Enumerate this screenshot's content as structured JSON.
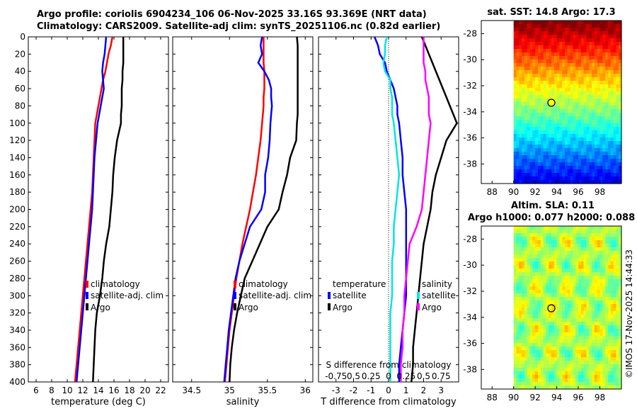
{
  "header": {
    "line1": "Argo profile: coriolis 6904234_106 06-Nov-2025 33.16S 93.369E (NRT data)",
    "line2": "Climatology: CARS2009. Satellite-adj clim: synTS_20251106.nc (0.82d earlier)"
  },
  "colors": {
    "climatology": "#ff0000",
    "satellite": "#0000ff",
    "argo": "#000000",
    "sat_salinity": "#00e5e5",
    "argo_salinity": "#ff00ff"
  },
  "chart_data": [
    {
      "id": "temperature",
      "type": "line",
      "xlabel": "temperature (deg C)",
      "ylabel": "",
      "xlim": [
        5,
        23
      ],
      "ylim": [
        400,
        0
      ],
      "xticks": [
        6,
        8,
        10,
        12,
        14,
        16,
        18,
        20,
        22
      ],
      "yticks": [
        0,
        20,
        40,
        60,
        80,
        100,
        120,
        140,
        160,
        180,
        200,
        220,
        240,
        260,
        280,
        300,
        320,
        340,
        360,
        380,
        400
      ],
      "legend": [
        "climatology",
        "satellite-adj. clim",
        "Argo"
      ],
      "series": [
        {
          "name": "climatology",
          "color": "#ff0000",
          "x": [
            15.8,
            15.6,
            15.3,
            15.1,
            14.9,
            14.6,
            14.4,
            14.2,
            14.0,
            13.8,
            13.6,
            13.5,
            13.4,
            13.3,
            13.2,
            13.0,
            12.8,
            12.6,
            12.4,
            12.2,
            12.0,
            11.8,
            11.6,
            11.4,
            11.2,
            11.0
          ],
          "y": [
            0,
            10,
            20,
            30,
            40,
            50,
            60,
            70,
            80,
            90,
            100,
            120,
            140,
            160,
            180,
            200,
            220,
            240,
            260,
            280,
            300,
            320,
            340,
            360,
            380,
            400
          ]
        },
        {
          "name": "satellite-adj. clim",
          "color": "#0000ff",
          "x": [
            15.0,
            14.9,
            14.8,
            14.6,
            14.5,
            14.6,
            14.7,
            14.5,
            14.3,
            14.1,
            13.9,
            13.7,
            13.5,
            13.4,
            13.3,
            13.2,
            13.0,
            12.8,
            12.6,
            12.4,
            12.2,
            12.0,
            11.8,
            11.6,
            11.4,
            11.2
          ],
          "y": [
            0,
            10,
            20,
            30,
            40,
            50,
            60,
            70,
            80,
            90,
            100,
            120,
            140,
            160,
            180,
            200,
            220,
            240,
            260,
            280,
            300,
            320,
            340,
            360,
            380,
            400
          ]
        },
        {
          "name": "Argo",
          "color": "#000000",
          "x": [
            17.2,
            17.2,
            17.2,
            17.2,
            17.1,
            17.1,
            17.0,
            17.0,
            17.0,
            16.9,
            16.9,
            16.4,
            16.1,
            15.9,
            15.8,
            15.6,
            15.4,
            15.0,
            14.7,
            14.5,
            14.2,
            13.8,
            13.6,
            13.5,
            13.4,
            13.3
          ],
          "y": [
            0,
            10,
            20,
            30,
            40,
            50,
            60,
            70,
            80,
            90,
            100,
            120,
            140,
            160,
            180,
            200,
            220,
            240,
            260,
            280,
            300,
            320,
            340,
            360,
            380,
            400
          ]
        }
      ]
    },
    {
      "id": "salinity",
      "type": "line",
      "xlabel": "salinity",
      "ylabel": "",
      "xlim": [
        34.25,
        36.1
      ],
      "ylim": [
        400,
        0
      ],
      "xticks": [
        34.5,
        35,
        35.5,
        36
      ],
      "xticklabels": [
        "34.5",
        "35",
        "35.5",
        "36"
      ],
      "legend": [
        "climatology",
        "satellite-adj. clim",
        "Argo"
      ],
      "series": [
        {
          "name": "climatology",
          "color": "#ff0000",
          "x": [
            35.45,
            35.45,
            35.45,
            35.45,
            35.46,
            35.46,
            35.46,
            35.45,
            35.45,
            35.44,
            35.43,
            35.41,
            35.38,
            35.35,
            35.31,
            35.27,
            35.22,
            35.17,
            35.13,
            35.09,
            35.06,
            35.03,
            35.0,
            34.98,
            34.96,
            34.94
          ],
          "y": [
            0,
            10,
            20,
            30,
            40,
            50,
            60,
            70,
            80,
            90,
            100,
            120,
            140,
            160,
            180,
            200,
            220,
            240,
            260,
            280,
            300,
            320,
            340,
            360,
            380,
            400
          ]
        },
        {
          "name": "satellite-adj. clim",
          "color": "#0000ff",
          "x": [
            35.43,
            35.41,
            35.43,
            35.38,
            35.46,
            35.52,
            35.55,
            35.55,
            35.56,
            35.55,
            35.54,
            35.53,
            35.51,
            35.47,
            35.47,
            35.42,
            35.27,
            35.2,
            35.13,
            35.08,
            35.05,
            35.02,
            34.99,
            34.97,
            34.95,
            34.93
          ],
          "y": [
            0,
            10,
            20,
            30,
            40,
            50,
            60,
            70,
            80,
            90,
            100,
            120,
            140,
            160,
            180,
            200,
            220,
            240,
            260,
            280,
            300,
            320,
            340,
            360,
            380,
            400
          ]
        },
        {
          "name": "Argo",
          "color": "#000000",
          "x": [
            35.89,
            35.9,
            35.9,
            35.9,
            35.9,
            35.9,
            35.9,
            35.9,
            35.9,
            35.9,
            35.89,
            35.88,
            35.8,
            35.76,
            35.7,
            35.65,
            35.5,
            35.4,
            35.3,
            35.2,
            35.15,
            35.1,
            35.06,
            35.03,
            35.01,
            35.0
          ],
          "y": [
            0,
            10,
            20,
            30,
            40,
            50,
            60,
            70,
            80,
            90,
            100,
            120,
            140,
            160,
            180,
            200,
            220,
            240,
            260,
            280,
            300,
            320,
            340,
            360,
            380,
            400
          ]
        }
      ]
    },
    {
      "id": "difference",
      "type": "line",
      "xlabel": "T difference from climatology",
      "xlabel2": "S difference from climatology",
      "ylabel": "",
      "xlim": [
        -4,
        4
      ],
      "ylim": [
        400,
        0
      ],
      "xticks": [
        -3,
        -2,
        -1,
        0,
        1,
        2,
        3
      ],
      "xticklabels2": [
        "-0.75",
        "0.5",
        "0.25",
        "0",
        "0.25",
        "0.5",
        "0.75"
      ],
      "legend_groups": [
        "temperature",
        "salinity"
      ],
      "legend_temperature": [
        "satellite",
        "Argo"
      ],
      "legend_salinity": [
        "satellite",
        "Argo"
      ],
      "series": [
        {
          "name": "satellite",
          "group": "temperature",
          "color": "#0000ff",
          "x": [
            -0.8,
            -0.6,
            -0.5,
            -0.2,
            -0.1,
            0.1,
            0.3,
            0.4,
            0.5,
            0.5,
            0.6,
            0.7,
            0.8,
            0.8,
            0.9,
            1.0,
            1.0,
            1.0,
            1.0,
            1.0,
            1.0,
            0.9,
            0.8,
            0.7,
            0.6,
            0.6
          ],
          "y": [
            0,
            10,
            20,
            30,
            40,
            50,
            60,
            70,
            80,
            90,
            100,
            120,
            140,
            160,
            180,
            200,
            220,
            240,
            260,
            280,
            300,
            320,
            340,
            360,
            380,
            400
          ]
        },
        {
          "name": "Argo",
          "group": "temperature",
          "color": "#000000",
          "x": [
            1.9,
            2.1,
            2.3,
            2.5,
            2.7,
            2.9,
            3.1,
            3.3,
            3.5,
            3.7,
            3.9,
            3.3,
            3.0,
            2.7,
            2.5,
            2.4,
            2.2,
            2.0,
            1.9,
            1.8,
            1.7,
            1.6,
            1.5,
            1.4,
            1.4,
            1.3
          ],
          "y": [
            0,
            10,
            20,
            30,
            40,
            50,
            60,
            70,
            80,
            90,
            100,
            120,
            140,
            160,
            180,
            200,
            220,
            240,
            260,
            280,
            300,
            320,
            340,
            360,
            380,
            400
          ]
        },
        {
          "name": "satellite",
          "group": "salinity",
          "color": "#00e5e5",
          "x": [
            -0.1,
            -0.2,
            -0.2,
            -0.3,
            -0.2,
            0.1,
            0.1,
            0.2,
            0.2,
            0.2,
            0.3,
            0.4,
            0.5,
            0.6,
            0.5,
            0.4,
            0.3,
            0.3,
            0.2,
            0.2,
            0.2,
            0.1,
            0.1,
            0.1,
            0.1,
            0.1
          ],
          "y": [
            0,
            10,
            20,
            30,
            40,
            50,
            60,
            70,
            80,
            90,
            100,
            120,
            140,
            160,
            180,
            200,
            220,
            240,
            260,
            280,
            300,
            320,
            340,
            360,
            380,
            400
          ]
        },
        {
          "name": "Argo",
          "group": "salinity",
          "color": "#ff00ff",
          "x": [
            2.0,
            2.0,
            2.0,
            2.0,
            2.1,
            2.1,
            2.2,
            2.3,
            2.3,
            2.3,
            2.4,
            2.3,
            2.2,
            2.1,
            2.0,
            1.9,
            1.6,
            1.2,
            1.1,
            1.0,
            0.9,
            0.9,
            0.8,
            0.8,
            0.7,
            0.7
          ],
          "y": [
            0,
            10,
            20,
            30,
            40,
            50,
            60,
            70,
            80,
            90,
            100,
            120,
            140,
            160,
            180,
            200,
            220,
            240,
            260,
            280,
            300,
            320,
            340,
            360,
            380,
            400
          ]
        }
      ]
    },
    {
      "id": "sst_map",
      "type": "heatmap",
      "title": "sat. SST: 14.8 Argo: 17.3",
      "xlim": [
        87,
        100
      ],
      "ylim": [
        -39.5,
        -27
      ],
      "xticks": [
        88,
        90,
        92,
        94,
        96,
        98
      ],
      "yticks": [
        -38,
        -36,
        -34,
        -32,
        -30,
        -28
      ],
      "data_xlim": [
        90,
        100
      ],
      "argo_position": {
        "lon": 93.369,
        "lat": -33.16
      }
    },
    {
      "id": "sla_map",
      "type": "heatmap",
      "title": "Altim. SLA: 0.11",
      "subtitle": "Argo h1000: 0.077 h2000: 0.088",
      "xlim": [
        87,
        100
      ],
      "ylim": [
        -39.5,
        -27
      ],
      "xticks": [
        88,
        90,
        92,
        94,
        96,
        98
      ],
      "yticks": [
        -38,
        -36,
        -34,
        -32,
        -30,
        -28
      ],
      "data_xlim": [
        90,
        100
      ],
      "argo_position": {
        "lon": 93.369,
        "lat": -33.16
      }
    }
  ],
  "watermark": "©IMOS 17-Nov-2025 14:44:33"
}
